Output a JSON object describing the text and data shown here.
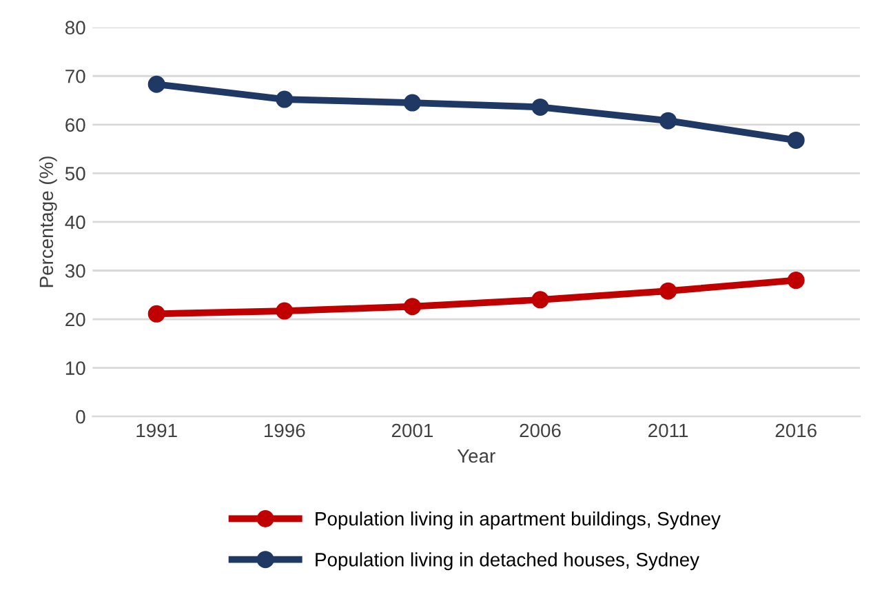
{
  "chart_data": {
    "type": "line",
    "xlabel": "Year",
    "ylabel": "Percentage (%)",
    "categories": [
      "1991",
      "1996",
      "2001",
      "2006",
      "2011",
      "2016"
    ],
    "series": [
      {
        "name": "Population living in apartment buildings, Sydney",
        "color": "#c00000",
        "values": [
          21.1,
          21.7,
          22.6,
          24.0,
          25.8,
          28.0
        ]
      },
      {
        "name": "Population living in detached houses, Sydney",
        "color": "#203864",
        "values": [
          68.3,
          65.2,
          64.5,
          63.6,
          60.8,
          56.8
        ]
      }
    ],
    "ylim": [
      0,
      80
    ],
    "yticks": [
      0,
      10,
      20,
      30,
      40,
      50,
      60,
      70,
      80
    ],
    "grid": "y",
    "legend": "bottom",
    "marker": "circle",
    "line_style": "solid"
  }
}
